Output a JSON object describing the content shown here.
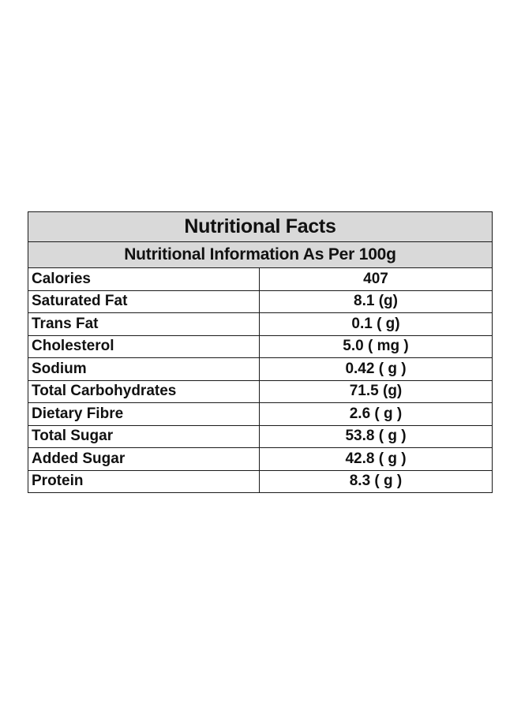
{
  "title": "Nutritional Facts",
  "subtitle": "Nutritional Information As Per 100g",
  "rows": [
    {
      "label": "Calories",
      "value": "407"
    },
    {
      "label": "Saturated Fat",
      "value": "8.1 (g)"
    },
    {
      "label": "Trans Fat",
      "value": "0.1 ( g)"
    },
    {
      "label": "Cholesterol",
      "value": "5.0 ( mg )"
    },
    {
      "label": "Sodium",
      "value": "0.42 ( g )"
    },
    {
      "label": "Total Carbohydrates",
      "value": "71.5 (g)"
    },
    {
      "label": "Dietary Fibre",
      "value": "2.6 ( g )"
    },
    {
      "label": "Total Sugar",
      "value": "53.8 ( g )"
    },
    {
      "label": "Added Sugar",
      "value": "42.8 ( g )"
    },
    {
      "label": "Protein",
      "value": "8.3 ( g )"
    }
  ],
  "colors": {
    "header_background": "#d9d9d9",
    "border": "#1a1a1a",
    "text": "#111111"
  }
}
